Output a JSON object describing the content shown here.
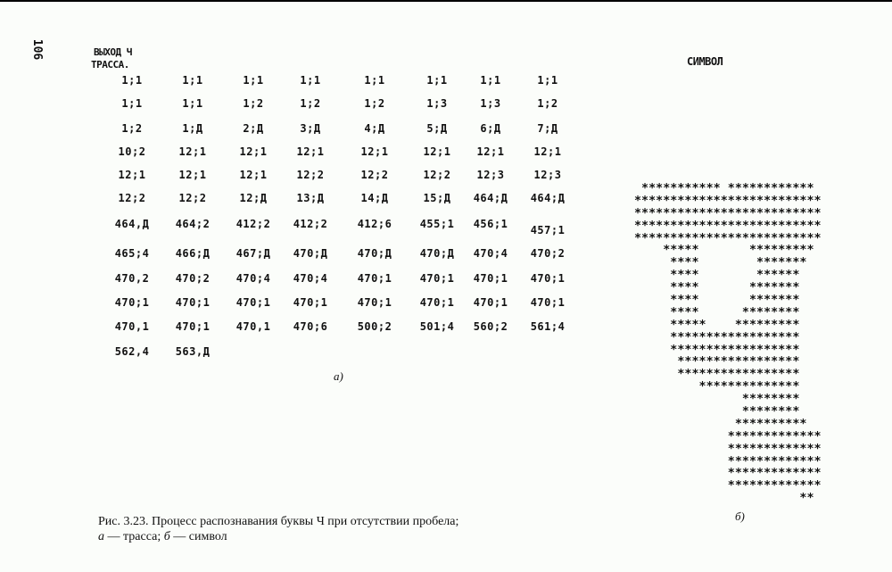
{
  "page_number": "106",
  "trace_header": {
    "line1": "ВЫХОД Ч",
    "line2": "ТРАССА."
  },
  "symbol_header": "СИМВОЛ",
  "trace_rows": [
    [
      "1;1",
      "1;1",
      "1;1",
      "1;1",
      "1;1",
      "1;1",
      "1;1",
      "1;1"
    ],
    [
      "1;1",
      "1;1",
      "1;2",
      "1;2",
      "1;2",
      "1;3",
      "1;3",
      "1;2"
    ],
    [
      "1;2",
      "1;Д",
      "2;Д",
      "3;Д",
      "4;Д",
      "5;Д",
      "6;Д",
      "7;Д"
    ],
    [
      "10;2",
      "12;1",
      "12;1",
      "12;1",
      "12;1",
      "12;1",
      "12;1",
      "12;1"
    ],
    [
      "12;1",
      "12;1",
      "12;1",
      "12;2",
      "12;2",
      "12;2",
      "12;3",
      "12;3"
    ],
    [
      "12;2",
      "12;2",
      "12;Д",
      "13;Д",
      "14;Д",
      "15;Д",
      "464;Д",
      "464;Д"
    ],
    [
      "464,Д",
      "464;2",
      "412;2",
      "412;2",
      "412;6",
      "455;1",
      "456;1",
      "457;1"
    ],
    [
      "465;4",
      "466;Д",
      "467;Д",
      "470;Д",
      "470;Д",
      "470;Д",
      "470;4",
      "470;2"
    ],
    [
      "470,2",
      "470;2",
      "470;4",
      "470;4",
      "470;1",
      "470;1",
      "470;1",
      "470;1"
    ],
    [
      "470;1",
      "470;1",
      "470;1",
      "470;1",
      "470;1",
      "470;1",
      "470;1",
      "470;1"
    ],
    [
      "470,1",
      "470;1",
      "470,1",
      "470;6",
      "500;2",
      "501;4",
      "560;2",
      "561;4"
    ],
    [
      "562,4",
      "563,Д"
    ]
  ],
  "symbol_lines": [
    " *********** ************",
    "**************************",
    "**************************",
    "**************************",
    "**************************",
    "    *****       *********",
    "     ****        *******",
    "     ****        ******",
    "     ****       *******",
    "     ****       *******",
    "     ****      ********",
    "     *****    *********",
    "     ******************",
    "     ******************",
    "      *****************",
    "      *****************",
    "         **************",
    "               ********",
    "               ********",
    "              **********",
    "             *************",
    "             *************",
    "             *************",
    "             *************",
    "             *************",
    "                       **"
  ],
  "label_a": "а)",
  "label_b": "б)",
  "caption": {
    "line1": "Рис. 3.23. Процесс распознавания буквы Ч при отсутствии пробела;",
    "a": "а",
    "a_text": " — трасса; ",
    "b": "б",
    "b_text": " — символ"
  }
}
